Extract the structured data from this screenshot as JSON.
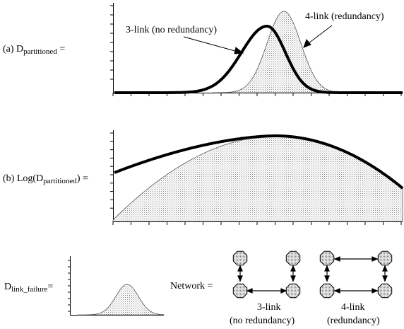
{
  "panel_a": {
    "label_prefix": "(a) D",
    "label_sub": "partitioned",
    "label_suffix": " =",
    "series_3link": "3-link (no redundancy)",
    "series_4link": "4-link (redundancy)"
  },
  "panel_b": {
    "label_prefix": "(b) Log(D",
    "label_sub": "partitioned",
    "label_suffix": ") ="
  },
  "panel_c": {
    "label_prefix": "D",
    "label_sub": "link_failure",
    "label_suffix": "="
  },
  "network": {
    "label": "Network =",
    "left_caption_1": "3-link",
    "left_caption_2": "(no redundancy)",
    "right_caption_1": "4-link",
    "right_caption_2": "(redundancy)"
  },
  "colors": {
    "stroke": "#000000",
    "stipple": "#9a9a9a",
    "node_fill": "#bfbfbf"
  }
}
